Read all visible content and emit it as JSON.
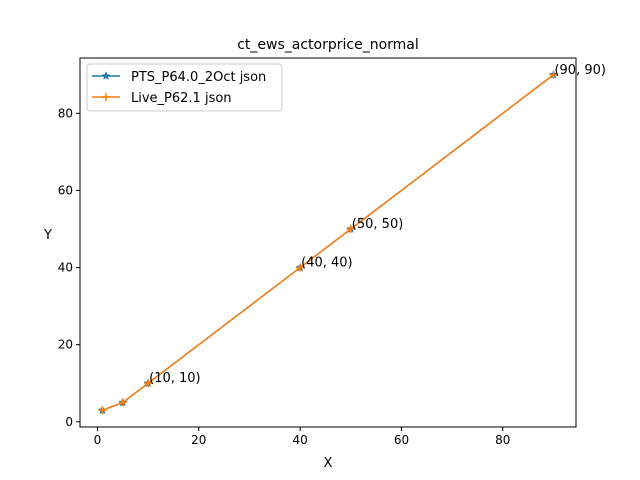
{
  "chart_data": {
    "type": "line",
    "title": "ct_ews_actorprice_normal",
    "xlabel": "X",
    "ylabel": "Y",
    "xlim": [
      -3.45,
      94.45
    ],
    "ylim": [
      -1.35,
      94.35
    ],
    "xticks": [
      0,
      20,
      40,
      60,
      80
    ],
    "yticks": [
      0,
      20,
      40,
      60,
      80
    ],
    "grid": false,
    "legend_position": "top-left",
    "series": [
      {
        "name": "PTS_P64.0_2Oct json",
        "color": "#1f77b4",
        "marker": "star",
        "x": [
          1,
          5,
          10,
          40,
          50,
          90
        ],
        "y": [
          3,
          5,
          10,
          40,
          50,
          90
        ]
      },
      {
        "name": "Live_P62.1 json",
        "color": "#ff7f0e",
        "marker": "plus",
        "x": [
          1,
          5,
          10,
          40,
          50,
          90
        ],
        "y": [
          3,
          5,
          10,
          40,
          50,
          90
        ]
      }
    ],
    "annotations": [
      {
        "text": "(10, 10)",
        "x": 10,
        "y": 10
      },
      {
        "text": "(40, 40)",
        "x": 40,
        "y": 40
      },
      {
        "text": "(50, 50)",
        "x": 50,
        "y": 50
      },
      {
        "text": "(90, 90)",
        "x": 90,
        "y": 90
      }
    ]
  }
}
